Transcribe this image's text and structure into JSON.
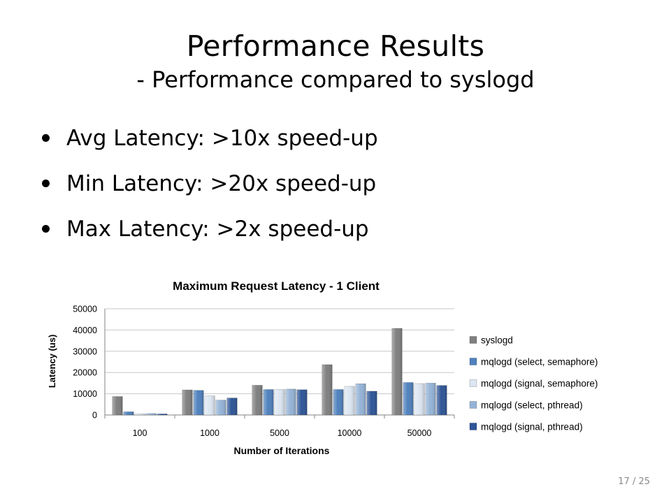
{
  "slide": {
    "title": "Performance Results",
    "subtitle": "- Performance compared to syslogd",
    "bullets": [
      "Avg Latency: >10x speed-up",
      "Min Latency: >20x speed-up",
      "Max Latency: >2x speed-up"
    ],
    "page_number": "17 / 25"
  },
  "chart_data": {
    "type": "bar",
    "title": "Maximum Request Latency - 1 Client",
    "xlabel": "Number of Iterations",
    "ylabel": "Latency (us)",
    "ylim": [
      0,
      50000
    ],
    "yticks": [
      0,
      10000,
      20000,
      30000,
      40000,
      50000
    ],
    "categories": [
      "100",
      "1000",
      "5000",
      "10000",
      "50000"
    ],
    "series": [
      {
        "name": "syslogd",
        "color": "#7f7f7f",
        "values": [
          8700,
          11800,
          14000,
          23700,
          40800
        ]
      },
      {
        "name": "mqlogd (select, semaphore)",
        "color": "#4f81bd",
        "values": [
          1500,
          11600,
          12000,
          12000,
          15300
        ]
      },
      {
        "name": "mqlogd (signal, semaphore)",
        "color": "#dce6f2",
        "values": [
          500,
          9000,
          12000,
          13500,
          14800
        ]
      },
      {
        "name": "mqlogd (select, pthread)",
        "color": "#95b3d7",
        "values": [
          700,
          7000,
          12200,
          14700,
          15000
        ]
      },
      {
        "name": "mqlogd (signal, pthread)",
        "color": "#2e5596",
        "values": [
          500,
          8000,
          11900,
          11200,
          13900
        ]
      }
    ],
    "grid": true,
    "legend_position": "right"
  }
}
